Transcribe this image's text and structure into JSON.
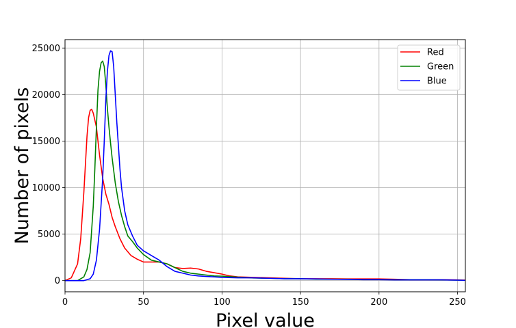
{
  "chart_data": {
    "type": "line",
    "title": "",
    "xlabel": "Pixel value",
    "ylabel": "Number of pixels",
    "xlim": [
      0,
      255
    ],
    "ylim": [
      -1200,
      25900
    ],
    "xticks": [
      0,
      50,
      100,
      150,
      200,
      250
    ],
    "yticks": [
      0,
      5000,
      10000,
      15000,
      20000,
      25000
    ],
    "grid": true,
    "legend": "top-right",
    "series": [
      {
        "name": "Red",
        "color": "#ff0000",
        "x": [
          0,
          4,
          8,
          10,
          12,
          14,
          15,
          16,
          17,
          18,
          20,
          22,
          24,
          26,
          28,
          30,
          32,
          35,
          38,
          42,
          46,
          50,
          55,
          60,
          65,
          70,
          75,
          80,
          85,
          90,
          95,
          100,
          105,
          110,
          120,
          130,
          140,
          150,
          160,
          170,
          180,
          190,
          200,
          210,
          220,
          230,
          240,
          250,
          255
        ],
        "values": [
          0,
          300,
          1800,
          4500,
          9500,
          15500,
          17500,
          18300,
          18400,
          18000,
          16500,
          13500,
          11000,
          9300,
          8200,
          6800,
          5800,
          4500,
          3500,
          2700,
          2300,
          2000,
          2000,
          2000,
          1800,
          1400,
          1300,
          1350,
          1250,
          1000,
          850,
          700,
          500,
          400,
          350,
          300,
          250,
          200,
          200,
          200,
          180,
          180,
          180,
          150,
          100,
          100,
          100,
          80,
          50
        ]
      },
      {
        "name": "Green",
        "color": "#008000",
        "x": [
          0,
          8,
          12,
          14,
          16,
          18,
          19,
          20,
          21,
          22,
          23,
          24,
          25,
          26,
          27,
          28,
          29,
          30,
          32,
          34,
          36,
          38,
          40,
          43,
          46,
          50,
          55,
          60,
          65,
          70,
          75,
          80,
          85,
          90,
          95,
          100,
          110,
          120,
          130,
          140,
          150,
          160,
          170,
          180,
          190,
          200,
          210,
          220,
          230,
          240,
          250,
          255
        ],
        "values": [
          0,
          0,
          400,
          1200,
          3000,
          8000,
          12000,
          16500,
          20500,
          22500,
          23400,
          23600,
          23000,
          21000,
          18500,
          16500,
          14800,
          13200,
          10500,
          8500,
          7000,
          5800,
          4800,
          4200,
          3500,
          2800,
          2200,
          2000,
          1800,
          1400,
          1000,
          800,
          700,
          600,
          500,
          480,
          380,
          280,
          250,
          200,
          200,
          150,
          150,
          150,
          120,
          120,
          100,
          100,
          100,
          80,
          50,
          30
        ]
      },
      {
        "name": "Blue",
        "color": "#0000ff",
        "x": [
          0,
          12,
          16,
          18,
          20,
          22,
          24,
          25,
          26,
          27,
          28,
          29,
          30,
          31,
          32,
          33,
          34,
          35,
          36,
          38,
          40,
          43,
          46,
          50,
          55,
          60,
          65,
          70,
          75,
          80,
          85,
          90,
          95,
          100,
          110,
          120,
          130,
          140,
          150,
          160,
          170,
          180,
          190,
          200,
          210,
          220,
          230,
          240,
          250,
          255
        ],
        "values": [
          0,
          0,
          200,
          700,
          2200,
          5500,
          11000,
          15000,
          19500,
          22500,
          24200,
          24700,
          24600,
          23000,
          20000,
          17000,
          14500,
          12000,
          10000,
          7500,
          6000,
          4800,
          3800,
          3200,
          2700,
          2200,
          1500,
          1000,
          800,
          600,
          500,
          450,
          400,
          350,
          300,
          300,
          250,
          200,
          200,
          180,
          150,
          130,
          100,
          100,
          80,
          80,
          80,
          80,
          50,
          30
        ]
      }
    ]
  }
}
